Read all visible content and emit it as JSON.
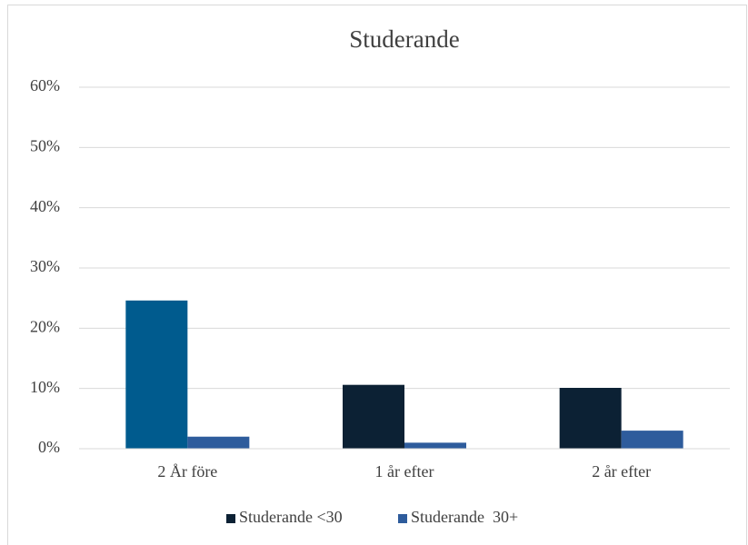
{
  "chart_data": {
    "type": "bar",
    "title": "Studerande",
    "categories": [
      "2 År före",
      "1 år efter",
      "2 år efter"
    ],
    "series": [
      {
        "name": "Studerande <30",
        "color": "#0c2134",
        "colors": [
          "#005b8e",
          "#0c2134",
          "#0c2134"
        ],
        "values": [
          24.6,
          10.6,
          10.1
        ]
      },
      {
        "name": "Studerande  30+",
        "color": "#2e5c9c",
        "values": [
          2.0,
          1.0,
          3.0
        ]
      }
    ],
    "ylim": [
      0,
      60
    ],
    "yticks": [
      {
        "value": 0,
        "label": "0%"
      },
      {
        "value": 10,
        "label": "10%"
      },
      {
        "value": 20,
        "label": "20%"
      },
      {
        "value": 30,
        "label": "30%"
      },
      {
        "value": 40,
        "label": "40%"
      },
      {
        "value": 50,
        "label": "50%"
      },
      {
        "value": 60,
        "label": "60%"
      }
    ],
    "grid": true,
    "legend": "bottom"
  }
}
